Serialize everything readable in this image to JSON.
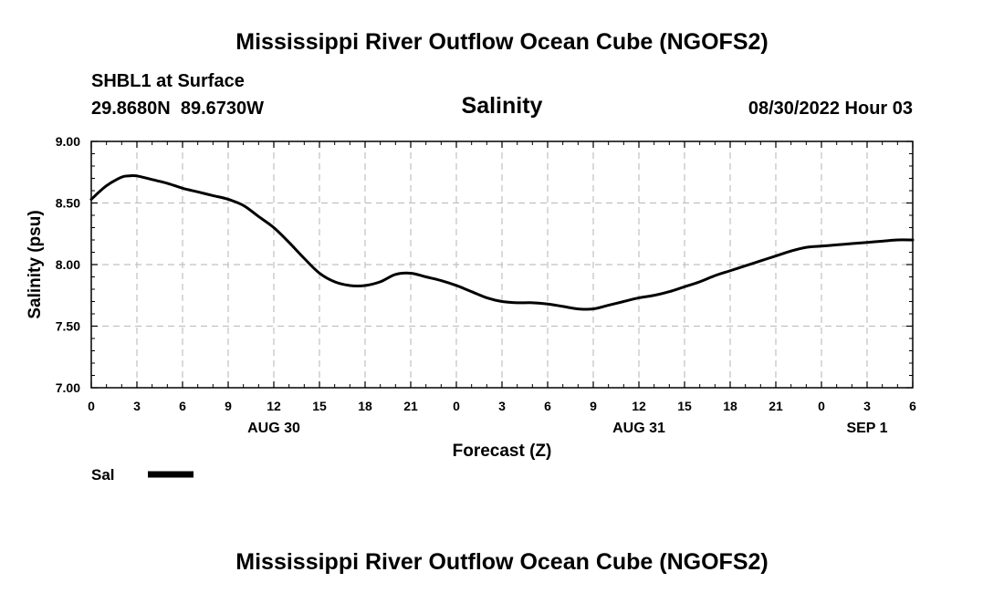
{
  "header": {
    "title": "Mississippi River Outflow Ocean Cube (NGOFS2)",
    "station": "SHBL1 at Surface",
    "coords": "29.8680N  89.6730W",
    "datetime": "08/30/2022 Hour 03",
    "footer_title": "Mississippi River Outflow Ocean Cube (NGOFS2)"
  },
  "legend": {
    "label": "Sal"
  },
  "colors": {
    "line": "#000000",
    "grid": "#c0c0c0",
    "axis": "#000000"
  },
  "chart_data": {
    "type": "line",
    "title": "Salinity",
    "xlabel": "Forecast (Z)",
    "ylabel": "Salinity (psu)",
    "xlim": [
      0,
      54
    ],
    "ylim": [
      7.0,
      9.0
    ],
    "grid": true,
    "legend_position": "bottom-left",
    "x_ticks": [
      0,
      3,
      6,
      9,
      12,
      15,
      18,
      21,
      24,
      27,
      30,
      33,
      36,
      39,
      42,
      45,
      48,
      51,
      54
    ],
    "x_tick_labels": [
      "0",
      "3",
      "6",
      "9",
      "12",
      "15",
      "18",
      "21",
      "0",
      "3",
      "6",
      "9",
      "12",
      "15",
      "18",
      "21",
      "0",
      "3",
      "6"
    ],
    "y_ticks": [
      7.0,
      7.5,
      8.0,
      8.5,
      9.0
    ],
    "y_tick_labels": [
      "7.00",
      "7.50",
      "8.00",
      "8.50",
      "9.00"
    ],
    "day_labels": [
      {
        "x": 12,
        "label": "AUG 30"
      },
      {
        "x": 36,
        "label": "AUG 31"
      },
      {
        "x": 51,
        "label": "SEP 1"
      }
    ],
    "series": [
      {
        "name": "Sal",
        "x": [
          0,
          1,
          2,
          2.5,
          3,
          4,
          5,
          6,
          7,
          8,
          9,
          10,
          11,
          12,
          13,
          14,
          15,
          16,
          17,
          18,
          19,
          20,
          21,
          22,
          23,
          24,
          25,
          26,
          27,
          28,
          29,
          30,
          31,
          32,
          33,
          34,
          35,
          36,
          37,
          38,
          39,
          40,
          41,
          42,
          43,
          44,
          45,
          46,
          47,
          48,
          49,
          50,
          51,
          52,
          53,
          54
        ],
        "values": [
          8.53,
          8.64,
          8.71,
          8.72,
          8.72,
          8.69,
          8.66,
          8.62,
          8.59,
          8.56,
          8.53,
          8.48,
          8.39,
          8.3,
          8.18,
          8.05,
          7.93,
          7.86,
          7.83,
          7.83,
          7.86,
          7.92,
          7.93,
          7.9,
          7.87,
          7.83,
          7.78,
          7.73,
          7.7,
          7.69,
          7.69,
          7.68,
          7.66,
          7.64,
          7.64,
          7.67,
          7.7,
          7.73,
          7.75,
          7.78,
          7.82,
          7.86,
          7.91,
          7.95,
          7.99,
          8.03,
          8.07,
          8.11,
          8.14,
          8.15,
          8.16,
          8.17,
          8.18,
          8.19,
          8.2,
          8.2
        ]
      }
    ]
  }
}
